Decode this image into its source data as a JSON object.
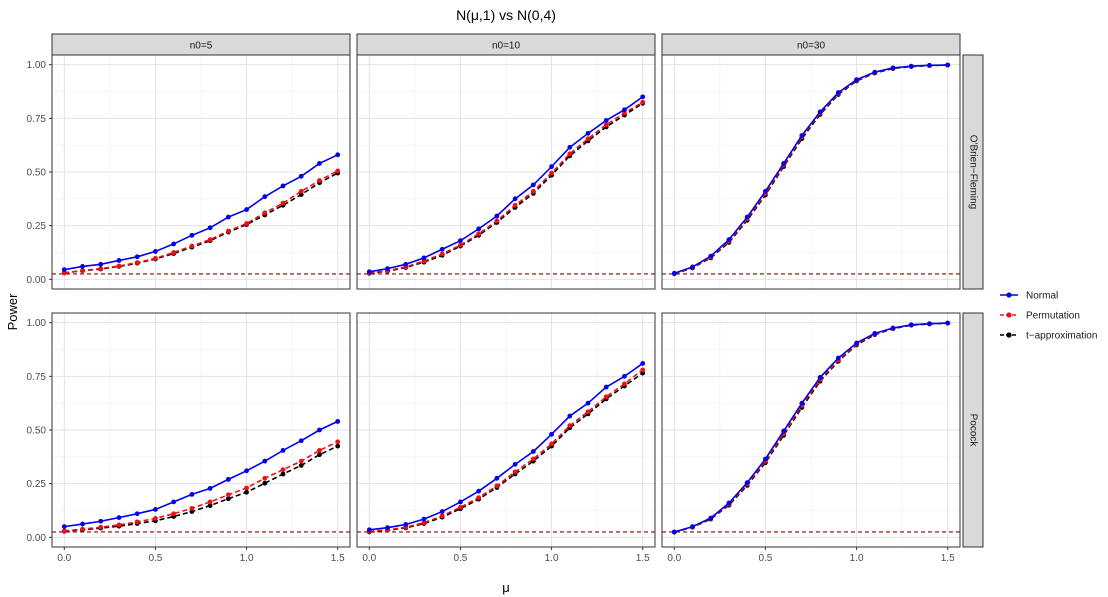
{
  "chart_data": {
    "type": "line",
    "title": "N(μ,1) vs N(0,4)",
    "xlabel": "μ",
    "ylabel": "Power",
    "xlim": [
      0,
      1.5
    ],
    "ylim": [
      0,
      1
    ],
    "x": [
      0.0,
      0.1,
      0.2,
      0.3,
      0.4,
      0.5,
      0.6,
      0.7,
      0.8,
      0.9,
      1.0,
      1.1,
      1.2,
      1.3,
      1.4,
      1.5
    ],
    "x_ticks": [
      "0.0",
      "0.5",
      "1.0",
      "1.5"
    ],
    "y_ticks": [
      "0.00",
      "0.25",
      "0.50",
      "0.75",
      "1.00"
    ],
    "reference_line": {
      "y": 0.025,
      "color": "#8b0000",
      "style": "dashed"
    },
    "column_facets": [
      "n0=5",
      "n0=10",
      "n0=30"
    ],
    "row_facets": [
      "O'Brien−Fleming",
      "Pocock"
    ],
    "legend": {
      "position": "right",
      "entries": [
        {
          "name": "Normal",
          "color": "#0000ee",
          "dash": "solid"
        },
        {
          "name": "Permutation",
          "color": "#ee1111",
          "dash": "dashed"
        },
        {
          "name": "t−approximation",
          "color": "#000000",
          "dash": "dashed"
        }
      ]
    },
    "panels": [
      {
        "row": "O'Brien−Fleming",
        "col": "n0=5",
        "series": [
          {
            "name": "Normal",
            "values": [
              0.045,
              0.06,
              0.07,
              0.088,
              0.105,
              0.13,
              0.165,
              0.205,
              0.24,
              0.29,
              0.325,
              0.385,
              0.435,
              0.48,
              0.54,
              0.58
            ]
          },
          {
            "name": "Permutation",
            "values": [
              0.03,
              0.04,
              0.05,
              0.062,
              0.078,
              0.098,
              0.125,
              0.155,
              0.185,
              0.225,
              0.26,
              0.31,
              0.355,
              0.41,
              0.46,
              0.505
            ]
          },
          {
            "name": "t−approximation",
            "values": [
              0.03,
              0.04,
              0.048,
              0.06,
              0.075,
              0.095,
              0.12,
              0.15,
              0.18,
              0.22,
              0.255,
              0.3,
              0.345,
              0.395,
              0.45,
              0.495
            ]
          }
        ]
      },
      {
        "row": "O'Brien−Fleming",
        "col": "n0=10",
        "series": [
          {
            "name": "Normal",
            "values": [
              0.035,
              0.05,
              0.07,
              0.1,
              0.14,
              0.18,
              0.235,
              0.295,
              0.375,
              0.44,
              0.525,
              0.615,
              0.68,
              0.74,
              0.79,
              0.85
            ]
          },
          {
            "name": "Permutation",
            "values": [
              0.03,
              0.04,
              0.058,
              0.085,
              0.118,
              0.16,
              0.212,
              0.272,
              0.345,
              0.41,
              0.495,
              0.585,
              0.655,
              0.72,
              0.775,
              0.825
            ]
          },
          {
            "name": "t−approximation",
            "values": [
              0.028,
              0.038,
              0.055,
              0.08,
              0.112,
              0.155,
              0.205,
              0.265,
              0.335,
              0.4,
              0.485,
              0.575,
              0.645,
              0.71,
              0.765,
              0.82
            ]
          }
        ]
      },
      {
        "row": "O'Brien−Fleming",
        "col": "n0=30",
        "series": [
          {
            "name": "Normal",
            "values": [
              0.028,
              0.058,
              0.108,
              0.185,
              0.29,
              0.41,
              0.54,
              0.67,
              0.78,
              0.87,
              0.93,
              0.965,
              0.985,
              0.993,
              0.997,
              0.998
            ]
          },
          {
            "name": "Permutation",
            "values": [
              0.027,
              0.055,
              0.104,
              0.178,
              0.282,
              0.4,
              0.532,
              0.663,
              0.775,
              0.866,
              0.927,
              0.963,
              0.984,
              0.992,
              0.996,
              0.998
            ]
          },
          {
            "name": "t−approximation",
            "values": [
              0.026,
              0.053,
              0.1,
              0.172,
              0.275,
              0.393,
              0.525,
              0.655,
              0.768,
              0.861,
              0.924,
              0.961,
              0.982,
              0.991,
              0.996,
              0.998
            ]
          }
        ]
      },
      {
        "row": "Pocock",
        "col": "n0=5",
        "series": [
          {
            "name": "Normal",
            "values": [
              0.05,
              0.062,
              0.075,
              0.092,
              0.11,
              0.13,
              0.165,
              0.2,
              0.228,
              0.27,
              0.31,
              0.355,
              0.405,
              0.45,
              0.5,
              0.54
            ]
          },
          {
            "name": "Permutation",
            "values": [
              0.03,
              0.038,
              0.047,
              0.058,
              0.072,
              0.088,
              0.11,
              0.135,
              0.165,
              0.198,
              0.23,
              0.275,
              0.315,
              0.355,
              0.405,
              0.445
            ]
          },
          {
            "name": "t−approximation",
            "values": [
              0.028,
              0.035,
              0.043,
              0.052,
              0.064,
              0.077,
              0.097,
              0.12,
              0.148,
              0.18,
              0.21,
              0.252,
              0.295,
              0.335,
              0.385,
              0.425
            ]
          }
        ]
      },
      {
        "row": "Pocock",
        "col": "n0=10",
        "series": [
          {
            "name": "Normal",
            "values": [
              0.035,
              0.045,
              0.06,
              0.085,
              0.12,
              0.165,
              0.215,
              0.275,
              0.34,
              0.4,
              0.48,
              0.565,
              0.625,
              0.7,
              0.75,
              0.81
            ]
          },
          {
            "name": "Permutation",
            "values": [
              0.028,
              0.035,
              0.047,
              0.068,
              0.1,
              0.14,
              0.185,
              0.24,
              0.305,
              0.365,
              0.435,
              0.52,
              0.585,
              0.655,
              0.715,
              0.78
            ]
          },
          {
            "name": "t−approximation",
            "values": [
              0.025,
              0.033,
              0.044,
              0.064,
              0.094,
              0.133,
              0.178,
              0.232,
              0.295,
              0.355,
              0.425,
              0.51,
              0.575,
              0.645,
              0.705,
              0.765
            ]
          }
        ]
      },
      {
        "row": "Pocock",
        "col": "n0=30",
        "series": [
          {
            "name": "Normal",
            "values": [
              0.025,
              0.05,
              0.09,
              0.16,
              0.255,
              0.365,
              0.495,
              0.625,
              0.745,
              0.835,
              0.905,
              0.95,
              0.975,
              0.99,
              0.995,
              0.998
            ]
          },
          {
            "name": "Permutation",
            "values": [
              0.025,
              0.048,
              0.088,
              0.155,
              0.248,
              0.355,
              0.483,
              0.614,
              0.735,
              0.826,
              0.9,
              0.947,
              0.973,
              0.989,
              0.995,
              0.998
            ]
          },
          {
            "name": "t−approximation",
            "values": [
              0.024,
              0.047,
              0.085,
              0.15,
              0.242,
              0.348,
              0.475,
              0.605,
              0.727,
              0.82,
              0.896,
              0.944,
              0.972,
              0.988,
              0.994,
              0.998
            ]
          }
        ]
      }
    ]
  }
}
